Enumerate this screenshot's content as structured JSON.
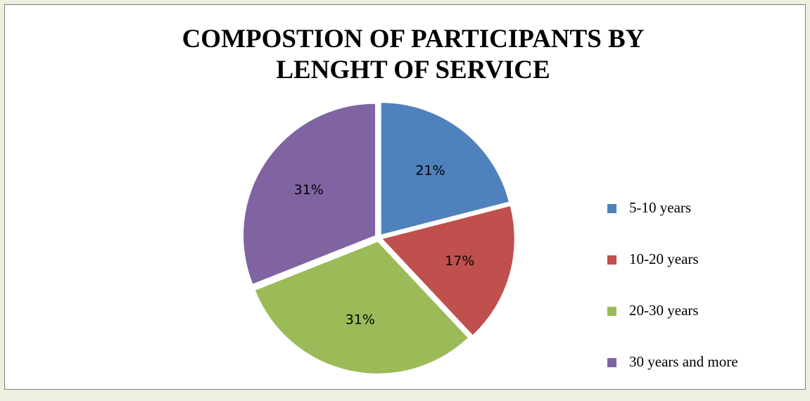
{
  "chart_data": {
    "type": "pie",
    "title_lines": [
      "COMPOSTION OF PARTICIPANTS BY",
      "LENGHT OF SERVICE"
    ],
    "categories": [
      "5-10 years",
      "10-20 years",
      "20-30 years",
      "30 years and more"
    ],
    "values": [
      21,
      17,
      31,
      31
    ],
    "labels": [
      "21%",
      "17%",
      "31%",
      "31%"
    ],
    "colors": [
      "#4f81bd",
      "#c0504d",
      "#9bbb59",
      "#8064a2"
    ],
    "legend_position": "right"
  }
}
